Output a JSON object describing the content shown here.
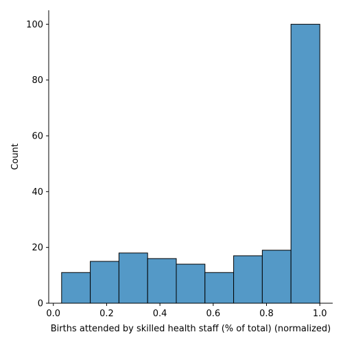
{
  "chart_data": {
    "type": "bar",
    "title": "",
    "xlabel": "Births attended by skilled health staff (% of total) (normalized)",
    "ylabel": "Count",
    "bins": [
      {
        "x0": 0.031,
        "x1": 0.1386,
        "count": 11
      },
      {
        "x0": 0.1386,
        "x1": 0.2462,
        "count": 15
      },
      {
        "x0": 0.2462,
        "x1": 0.3538,
        "count": 18
      },
      {
        "x0": 0.3538,
        "x1": 0.4614,
        "count": 16
      },
      {
        "x0": 0.4614,
        "x1": 0.569,
        "count": 14
      },
      {
        "x0": 0.569,
        "x1": 0.6766,
        "count": 11
      },
      {
        "x0": 0.6766,
        "x1": 0.7842,
        "count": 17
      },
      {
        "x0": 0.7842,
        "x1": 0.8918,
        "count": 19
      },
      {
        "x0": 0.8918,
        "x1": 1.0,
        "count": 100
      }
    ],
    "xlim": [
      -0.0174,
      1.0484
    ],
    "ylim": [
      0,
      105
    ],
    "xticks": [
      "0.0",
      "0.2",
      "0.4",
      "0.6",
      "0.8",
      "1.0"
    ],
    "xtick_values": [
      0.0,
      0.2,
      0.4,
      0.6,
      0.8,
      1.0
    ],
    "yticks": [
      "0",
      "20",
      "40",
      "60",
      "80",
      "100"
    ],
    "ytick_values": [
      0,
      20,
      40,
      60,
      80,
      100
    ],
    "bar_color": "#5499c7",
    "edge_color": "#000000",
    "grid": false,
    "legend": "none"
  }
}
